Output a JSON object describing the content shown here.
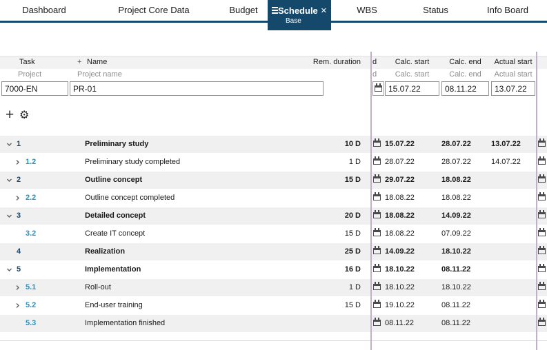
{
  "tabs": [
    {
      "label": "Dashboard",
      "active": false
    },
    {
      "label": "Project Core Data",
      "active": false
    },
    {
      "label": "Budget",
      "active": false
    },
    {
      "label": "Schedule",
      "active": true,
      "sublabel": "Base"
    },
    {
      "label": "WBS",
      "active": false
    },
    {
      "label": "Status",
      "active": false
    },
    {
      "label": "Info Board",
      "active": false
    }
  ],
  "icons": {
    "close": "✕",
    "plus": "+",
    "gear": "⚙"
  },
  "grid": {
    "header": {
      "task": "Task",
      "add": "+",
      "name": "Name",
      "rem_duration": "Rem. duration",
      "truncated_col": "d",
      "calc_start": "Calc. start",
      "calc_end": "Calc. end",
      "actual_start": "Actual start"
    },
    "subheader": {
      "task": "Project",
      "name": "Project name",
      "truncated_col": "d",
      "calc_start": "Calc. start",
      "calc_end": "Calc. end",
      "actual_start": "Actual start"
    },
    "filter_row": {
      "task": "7000-EN",
      "name": "PR-01",
      "calc_start": "15.07.22",
      "calc_end": "08.11.22",
      "actual_start": "13.07.22"
    },
    "rows": [
      {
        "number": "1",
        "name": "Preliminary study",
        "rem": "10 D",
        "expand": "down",
        "level": 1,
        "bold": true,
        "calc_start": "15.07.22",
        "calc_end": "28.07.22",
        "actual_start": "13.07.22"
      },
      {
        "number": "1.2",
        "name": "Preliminary study completed",
        "rem": "1 D",
        "expand": "right",
        "level": 2,
        "bold": false,
        "calc_start": "28.07.22",
        "calc_end": "28.07.22",
        "actual_start": "14.07.22"
      },
      {
        "number": "2",
        "name": "Outline concept",
        "rem": "15 D",
        "expand": "down",
        "level": 1,
        "bold": true,
        "calc_start": "29.07.22",
        "calc_end": "18.08.22",
        "actual_start": ""
      },
      {
        "number": "2.2",
        "name": "Outline concept completed",
        "rem": "",
        "expand": "right",
        "level": 2,
        "bold": false,
        "calc_start": "18.08.22",
        "calc_end": "18.08.22",
        "actual_start": ""
      },
      {
        "number": "3",
        "name": "Detailed concept",
        "rem": "20 D",
        "expand": "down",
        "level": 1,
        "bold": true,
        "calc_start": "18.08.22",
        "calc_end": "14.09.22",
        "actual_start": ""
      },
      {
        "number": "3.2",
        "name": "Create IT concept",
        "rem": "15 D",
        "expand": "none",
        "level": 2,
        "bold": false,
        "calc_start": "18.08.22",
        "calc_end": "07.09.22",
        "actual_start": ""
      },
      {
        "number": "4",
        "name": "Realization",
        "rem": "25 D",
        "expand": "none",
        "level": 1,
        "bold": true,
        "calc_start": "14.09.22",
        "calc_end": "18.10.22",
        "actual_start": ""
      },
      {
        "number": "5",
        "name": "Implementation",
        "rem": "16 D",
        "expand": "down",
        "level": 1,
        "bold": true,
        "calc_start": "18.10.22",
        "calc_end": "08.11.22",
        "actual_start": ""
      },
      {
        "number": "5.1",
        "name": "Roll-out",
        "rem": "1 D",
        "expand": "right",
        "level": 2,
        "bold": false,
        "calc_start": "18.10.22",
        "calc_end": "18.10.22",
        "actual_start": ""
      },
      {
        "number": "5.2",
        "name": "End-user training",
        "rem": "15 D",
        "expand": "right",
        "level": 2,
        "bold": false,
        "calc_start": "19.10.22",
        "calc_end": "08.11.22",
        "actual_start": ""
      },
      {
        "number": "5.3",
        "name": "Implementation finished",
        "rem": "",
        "expand": "none",
        "level": 2,
        "bold": false,
        "calc_start": "08.11.22",
        "calc_end": "08.11.22",
        "actual_start": ""
      }
    ]
  },
  "colors": {
    "accent_navy": "#14496b",
    "task_number_blue": "#2196c9",
    "splitter_purple": "#c3aed3",
    "row_shade": "#f0f0f0",
    "header_bg": "#f2f2f2"
  }
}
